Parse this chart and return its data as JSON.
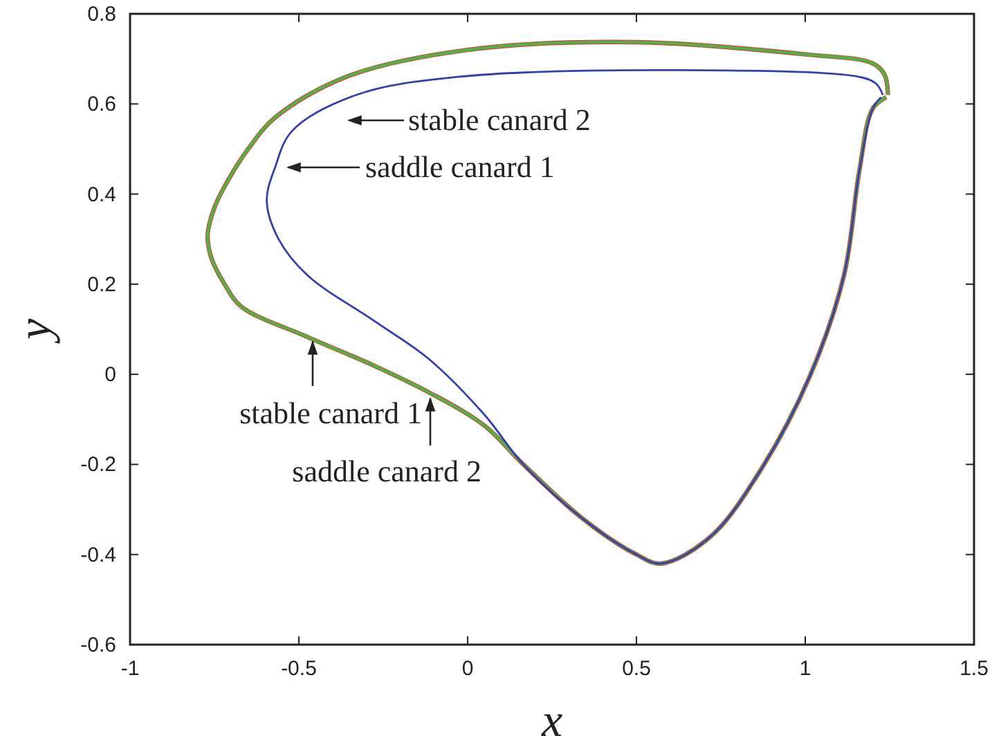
{
  "chart_data": {
    "type": "line",
    "xlabel": "x",
    "ylabel": "y",
    "xlim": [
      -1,
      1.5
    ],
    "ylim": [
      -0.6,
      0.8
    ],
    "xticks": [
      -1,
      -0.5,
      0,
      0.5,
      1,
      1.5
    ],
    "yticks": [
      -0.6,
      -0.4,
      -0.2,
      0,
      0.2,
      0.4,
      0.6,
      0.8
    ],
    "grid": false,
    "marker": "none",
    "line_style": "solid",
    "series": [
      {
        "color": "#d9372b",
        "x": [
          1.245,
          1.235,
          1.2,
          1.0,
          0.5,
          0,
          -0.36,
          -0.57,
          -0.65,
          -0.71,
          -0.75,
          -0.77,
          -0.76,
          -0.72,
          -0.67,
          -0.475,
          -0.28,
          -0.115,
          0.05,
          0.165,
          0.34,
          0.5,
          0.574,
          0.72,
          0.87,
          1.016,
          1.115,
          1.16,
          1.2,
          1.24
        ],
        "values": [
          0.62,
          0.665,
          0.69,
          0.71,
          0.737,
          0.72,
          0.66,
          0.57,
          0.5,
          0.43,
          0.37,
          0.31,
          0.26,
          0.2,
          0.15,
          0.083,
          0.02,
          -0.04,
          -0.114,
          -0.2,
          -0.32,
          -0.4,
          -0.42,
          -0.36,
          -0.21,
          0,
          0.22,
          0.45,
          0.59,
          0.615
        ]
      },
      {
        "color": "#5aab4a",
        "x": [
          1.245,
          1.235,
          1.2,
          1.0,
          0.5,
          0,
          -0.36,
          -0.57,
          -0.65,
          -0.71,
          -0.75,
          -0.77,
          -0.76,
          -0.72,
          -0.67,
          -0.475,
          -0.28,
          -0.115,
          0.05,
          0.165,
          0.34,
          0.5,
          0.574,
          0.72,
          0.87,
          1.016,
          1.115,
          1.16,
          1.2,
          1.24
        ],
        "values": [
          0.62,
          0.665,
          0.69,
          0.71,
          0.737,
          0.72,
          0.66,
          0.57,
          0.5,
          0.43,
          0.37,
          0.31,
          0.26,
          0.2,
          0.15,
          0.083,
          0.02,
          -0.04,
          -0.114,
          -0.2,
          -0.32,
          -0.4,
          -0.42,
          -0.36,
          -0.21,
          0,
          0.22,
          0.45,
          0.59,
          0.615
        ]
      },
      {
        "color": "#3440a8",
        "x": [
          1.23,
          1.21,
          1.16,
          0.62,
          -0.03,
          -0.33,
          -0.52,
          -0.57,
          -0.595,
          -0.56,
          -0.475,
          -0.28,
          -0.115,
          0.05,
          0.165,
          0.34,
          0.5,
          0.574,
          0.72,
          0.87,
          1.016,
          1.115,
          1.16,
          1.2,
          1.225
        ],
        "values": [
          0.62,
          0.645,
          0.66,
          0.675,
          0.66,
          0.62,
          0.54,
          0.46,
          0.385,
          0.3,
          0.22,
          0.12,
          0.034,
          -0.09,
          -0.2,
          -0.32,
          -0.4,
          -0.42,
          -0.36,
          -0.21,
          0,
          0.22,
          0.45,
          0.59,
          0.615
        ]
      }
    ],
    "annotations": [
      "stable canard 2",
      "saddle canard 1",
      "stable canard 1",
      "saddle canard 2"
    ]
  }
}
